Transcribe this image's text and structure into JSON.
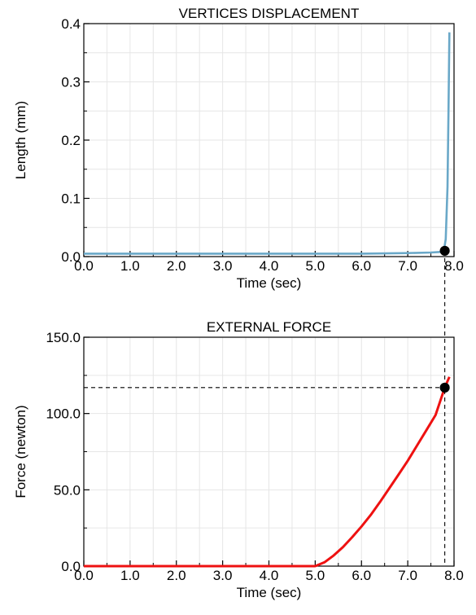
{
  "chart_data": [
    {
      "type": "line",
      "title": "VERTICES DISPLACEMENT",
      "xlabel": "Time (sec)",
      "ylabel": "Length (mm)",
      "xlim": [
        0,
        8
      ],
      "ylim": [
        0,
        0.4
      ],
      "xticks": [
        "0.0",
        "1.0",
        "2.0",
        "3.0",
        "4.0",
        "5.0",
        "6.0",
        "7.0",
        "8.0"
      ],
      "yticks": [
        "0.0",
        "0.1",
        "0.2",
        "0.3",
        "0.4"
      ],
      "grid": true,
      "series_color": "#6aa8c8",
      "x": [
        0,
        1,
        2,
        3,
        4,
        5,
        6,
        7,
        7.5,
        7.7,
        7.78,
        7.82,
        7.86,
        7.88,
        7.9
      ],
      "y": [
        0.005,
        0.005,
        0.005,
        0.005,
        0.005,
        0.005,
        0.005,
        0.006,
        0.007,
        0.008,
        0.01,
        0.03,
        0.12,
        0.25,
        0.385
      ],
      "marker": {
        "x": 7.8,
        "y": 0.01
      }
    },
    {
      "type": "line",
      "title": "EXTERNAL FORCE",
      "xlabel": "Time (sec)",
      "ylabel": "Force (newton)",
      "xlim": [
        0,
        8
      ],
      "ylim": [
        0,
        150
      ],
      "xticks": [
        "0.0",
        "1.0",
        "2.0",
        "3.0",
        "4.0",
        "5.0",
        "6.0",
        "7.0",
        "8.0"
      ],
      "yticks": [
        "0.0",
        "50.0",
        "100.0",
        "150.0"
      ],
      "grid": true,
      "series_color": "#ee1111",
      "x": [
        0,
        1,
        2,
        3,
        4,
        5.0,
        5.2,
        5.4,
        5.6,
        5.8,
        6.0,
        6.2,
        6.4,
        6.6,
        6.8,
        7.0,
        7.2,
        7.4,
        7.6,
        7.8,
        7.9
      ],
      "y": [
        0,
        0,
        0,
        0,
        0,
        0,
        2.5,
        7,
        12.5,
        19,
        26,
        33.5,
        42,
        51,
        60,
        69,
        79,
        89,
        99,
        117,
        124
      ],
      "marker": {
        "x": 7.8,
        "y": 117
      }
    }
  ]
}
